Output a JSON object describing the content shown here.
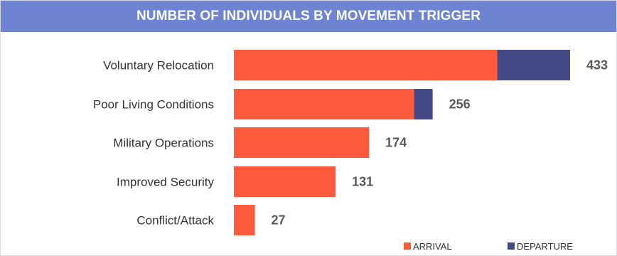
{
  "chart_data": {
    "type": "bar",
    "orientation": "horizontal",
    "stacked": true,
    "title": "NUMBER OF INDIVIDUALS BY MOVEMENT TRIGGER",
    "categories": [
      "Voluntary Relocation",
      "Poor Living Conditions",
      "Military Operations",
      "Improved Security",
      "Conflict/Attack"
    ],
    "series": [
      {
        "name": "ARRIVAL",
        "values": [
          339,
          232,
          174,
          131,
          27
        ],
        "color": "#ff5a3c"
      },
      {
        "name": "DEPARTURE",
        "values": [
          94,
          24,
          0,
          0,
          0
        ],
        "color": "#454a86"
      }
    ],
    "totals": [
      433,
      256,
      174,
      131,
      27
    ],
    "xlim": [
      0,
      433
    ],
    "grid": false,
    "legend": "bottom-right",
    "colors": {
      "title_background": "#6e84d3",
      "label_text": "#333333",
      "total_text": "#595959"
    }
  }
}
